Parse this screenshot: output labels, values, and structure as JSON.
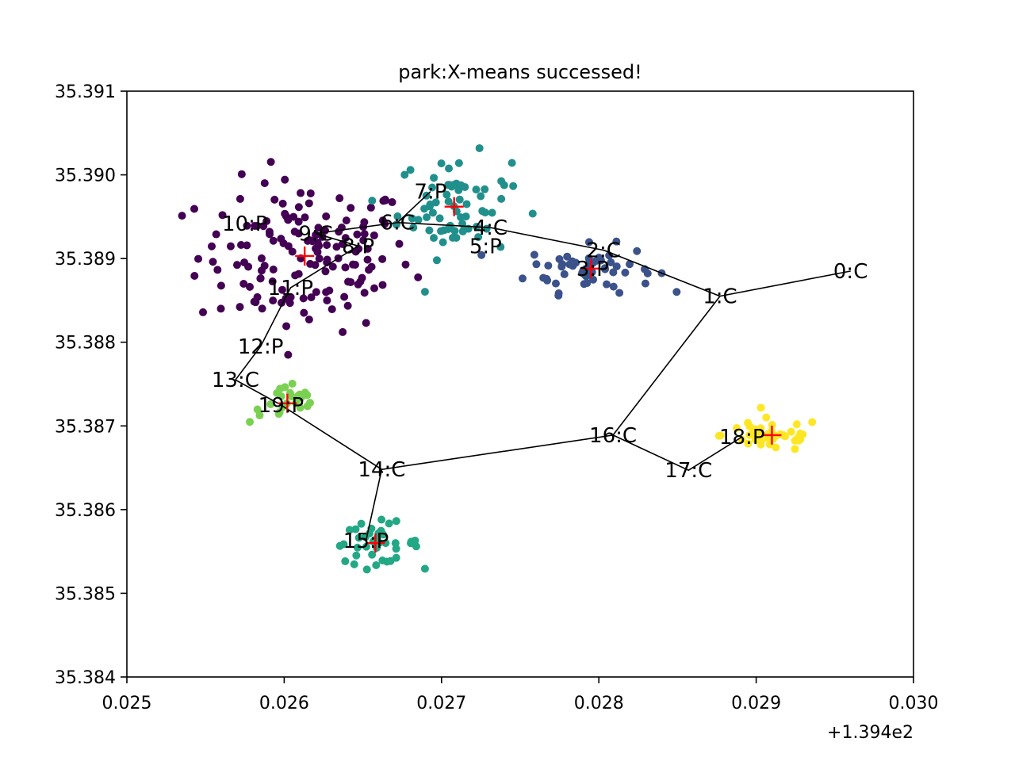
{
  "chart_data": {
    "type": "scatter",
    "title": "park:X-means successed!",
    "xlabel": "",
    "ylabel": "",
    "x_offset_label": "+1.394e2",
    "xlim": [
      0.025,
      0.03
    ],
    "ylim": [
      35.384,
      35.391
    ],
    "x_ticks": [
      0.025,
      0.026,
      0.027,
      0.028,
      0.029,
      0.03
    ],
    "x_tick_labels": [
      "0.025",
      "0.026",
      "0.027",
      "0.028",
      "0.029",
      "0.030"
    ],
    "y_ticks": [
      35.384,
      35.385,
      35.386,
      35.387,
      35.388,
      35.389,
      35.39,
      35.391
    ],
    "y_tick_labels": [
      "35.384",
      "35.385",
      "35.386",
      "35.387",
      "35.388",
      "35.389",
      "35.390",
      "35.391"
    ],
    "grid": false,
    "clusters": [
      {
        "id": 0,
        "color": "#440154",
        "center": [
          0.02613,
          35.38903
        ],
        "spread": [
          0.00034,
          0.00045
        ],
        "count": 150
      },
      {
        "id": 1,
        "color": "#3b528b",
        "center": [
          0.02795,
          35.38888
        ],
        "spread": [
          0.0002,
          0.00014
        ],
        "count": 60
      },
      {
        "id": 2,
        "color": "#21908d",
        "center": [
          0.02708,
          35.38962
        ],
        "spread": [
          0.00018,
          0.0003
        ],
        "count": 70
      },
      {
        "id": 3,
        "color": "#22a884",
        "center": [
          0.02658,
          35.3856
        ],
        "spread": [
          0.00014,
          0.00012
        ],
        "count": 40
      },
      {
        "id": 4,
        "color": "#7ad151",
        "center": [
          0.02602,
          35.38727
        ],
        "spread": [
          0.00012,
          0.00012
        ],
        "count": 25
      },
      {
        "id": 5,
        "color": "#fde725",
        "center": [
          0.0291,
          35.38689
        ],
        "spread": [
          0.00016,
          0.0001
        ],
        "count": 45
      }
    ],
    "centroids": [
      {
        "x": 0.02613,
        "y": 35.38903
      },
      {
        "x": 0.02795,
        "y": 35.38888
      },
      {
        "x": 0.02708,
        "y": 35.38962
      },
      {
        "x": 0.02658,
        "y": 35.3856
      },
      {
        "x": 0.02602,
        "y": 35.38727
      },
      {
        "x": 0.0291,
        "y": 35.38689
      }
    ],
    "nodes": [
      {
        "label": "0:C",
        "x": 0.0296,
        "y": 35.38885
      },
      {
        "label": "1:C",
        "x": 0.02877,
        "y": 35.38855
      },
      {
        "label": "2:C",
        "x": 0.02803,
        "y": 35.3891
      },
      {
        "label": "3:P",
        "x": 0.02796,
        "y": 35.38888
      },
      {
        "label": "4:C",
        "x": 0.02731,
        "y": 35.38937
      },
      {
        "label": "5:P",
        "x": 0.02728,
        "y": 35.38915
      },
      {
        "label": "6:C",
        "x": 0.02672,
        "y": 35.38943
      },
      {
        "label": "7:P",
        "x": 0.02693,
        "y": 35.3898
      },
      {
        "label": "8:P",
        "x": 0.02647,
        "y": 35.38915
      },
      {
        "label": "9:C",
        "x": 0.0262,
        "y": 35.3893
      },
      {
        "label": "10:P",
        "x": 0.02575,
        "y": 35.38942
      },
      {
        "label": "11:P",
        "x": 0.02604,
        "y": 35.38865
      },
      {
        "label": "12:P",
        "x": 0.02585,
        "y": 35.38795
      },
      {
        "label": "13:C",
        "x": 0.02569,
        "y": 35.38755
      },
      {
        "label": "14:C",
        "x": 0.02662,
        "y": 35.38648
      },
      {
        "label": "15:P",
        "x": 0.02652,
        "y": 35.38563
      },
      {
        "label": "16:C",
        "x": 0.02809,
        "y": 35.38689
      },
      {
        "label": "17:C",
        "x": 0.02857,
        "y": 35.38647
      },
      {
        "label": "18:P",
        "x": 0.02891,
        "y": 35.38687
      },
      {
        "label": "19:P",
        "x": 0.02598,
        "y": 35.38725
      }
    ],
    "path": [
      [
        0.0296,
        35.38885
      ],
      [
        0.02877,
        35.38855
      ],
      [
        0.02809,
        35.38689
      ],
      [
        0.02662,
        35.38648
      ],
      [
        0.02652,
        35.38563
      ],
      [
        0.02662,
        35.38648
      ],
      [
        0.02598,
        35.38725
      ],
      [
        0.02569,
        35.38755
      ],
      [
        0.02585,
        35.38795
      ],
      [
        0.02604,
        35.38865
      ],
      [
        0.02647,
        35.38915
      ],
      [
        0.0262,
        35.3893
      ],
      [
        0.02672,
        35.38943
      ],
      [
        0.02693,
        35.3898
      ],
      [
        0.02672,
        35.38943
      ],
      [
        0.02731,
        35.38937
      ],
      [
        0.02803,
        35.3891
      ],
      [
        0.02877,
        35.38855
      ]
    ],
    "path_branch": [
      [
        0.02809,
        35.38689
      ],
      [
        0.02857,
        35.38647
      ],
      [
        0.02891,
        35.38687
      ]
    ]
  }
}
